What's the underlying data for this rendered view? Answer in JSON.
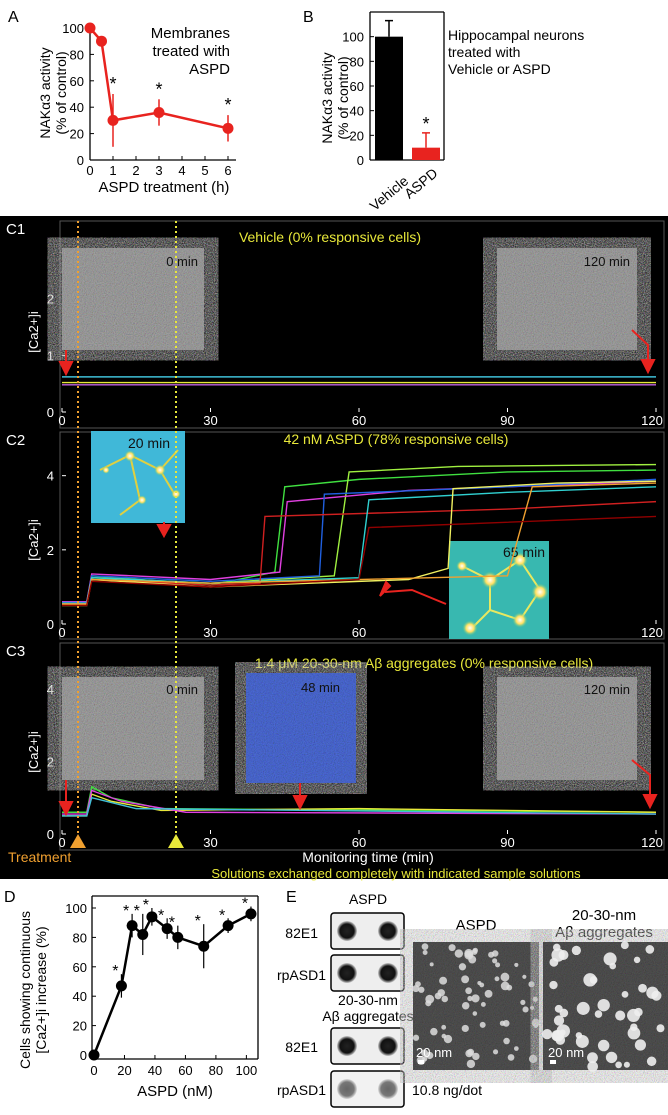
{
  "colors": {
    "red": "#e8231f",
    "yellow": "#e8e83a",
    "orange": "#f0a030",
    "white": "#ffffff",
    "black": "#000000"
  },
  "panel_labels": {
    "a": "A",
    "b": "B",
    "c1": "C1",
    "c2": "C2",
    "c3": "C3",
    "d": "D",
    "e": "E"
  },
  "panel_a": {
    "ylabel_1": "NAKα3 activity",
    "ylabel_2": "(% of control)",
    "xlabel": "ASPD treatment (h)",
    "legend_lines": [
      "Membranes",
      "treated with",
      "ASPD"
    ],
    "yticks": [
      "0",
      "20",
      "40",
      "60",
      "80",
      "100"
    ],
    "xticks": [
      "0",
      "1",
      "2",
      "3",
      "4",
      "5",
      "6"
    ],
    "star": "*"
  },
  "panel_b": {
    "ylabel_1": "NAKα3 activity",
    "ylabel_2": "(% of control)",
    "yticks": [
      "0",
      "20",
      "40",
      "60",
      "80",
      "100"
    ],
    "categories": [
      "Vehicle",
      "ASPD"
    ],
    "legend_lines": [
      "Hippocampal neurons",
      "treated with",
      "Vehicle or ASPD"
    ],
    "star": "*"
  },
  "panel_c": {
    "c1_title": "Vehicle (0% responsive cells)",
    "c2_title": "42 nM ASPD (78% responsive cells)",
    "c3_title": "1.4 μM 20-30-nm Aβ aggregates (0% responsive cells)",
    "ylabel": "[Ca2+]i",
    "yticks_c1": [
      "0",
      "1",
      "2"
    ],
    "yticks_c2": [
      "0",
      "2",
      "4"
    ],
    "yticks_c3": [
      "0",
      "2",
      "4"
    ],
    "xticks": [
      "0",
      "30",
      "60",
      "90",
      "120"
    ],
    "xlabel": "Monitoring time (min)",
    "treatment_label": "Treatment",
    "footnote": "Solutions exchanged completely with indicated sample solutions",
    "inset_c1_start": "0 min",
    "inset_c1_end": "120 min",
    "inset_c2_a": "20 min",
    "inset_c2_b": "65 min",
    "inset_c3_start": "0 min",
    "inset_c3_mid": "48 min",
    "inset_c3_end": "120 min"
  },
  "panel_d": {
    "ylabel_1": "Cells showing continuous",
    "ylabel_2": "[Ca2+]i increase (%)",
    "xlabel": "ASPD (nM)",
    "yticks": [
      "0",
      "20",
      "40",
      "60",
      "80",
      "100"
    ],
    "xticks": [
      "0",
      "20",
      "40",
      "60",
      "80",
      "100"
    ],
    "star": "*"
  },
  "panel_e": {
    "dot_title_1": "ASPD",
    "dot_title_2a": "20-30-nm",
    "dot_title_2b": "Aβ aggregates",
    "antibody_1": "82E1",
    "antibody_2": "rpASD1",
    "dose": "10.8 ng/dot",
    "em_title_1": "ASPD",
    "em_title_2a": "20-30-nm",
    "em_title_2b": "Aβ aggregates",
    "scalebar": "20 nm"
  },
  "chart_data": [
    {
      "panel": "A",
      "type": "line",
      "x": [
        0,
        0.5,
        1,
        3,
        6
      ],
      "values": [
        100,
        90,
        30,
        36,
        24
      ],
      "errors": [
        0,
        0,
        20,
        10,
        10
      ],
      "significant": [
        false,
        false,
        true,
        true,
        true
      ],
      "xlim": [
        0,
        6
      ],
      "ylim": [
        0,
        100
      ]
    },
    {
      "panel": "B",
      "type": "bar",
      "categories": [
        "Vehicle",
        "ASPD"
      ],
      "values": [
        100,
        10
      ],
      "errors": [
        13,
        12
      ],
      "ylim": [
        0,
        120
      ]
    },
    {
      "panel": "C1",
      "type": "line",
      "xlim": [
        0,
        120
      ],
      "ylim": [
        0,
        3
      ],
      "series": [
        {
          "color": "#3fbfd8",
          "points": [
            [
              0,
              0.62
            ],
            [
              120,
              0.62
            ]
          ]
        },
        {
          "color": "#e8e83a",
          "points": [
            [
              0,
              0.52
            ],
            [
              120,
              0.52
            ]
          ]
        },
        {
          "color": "#c060e0",
          "points": [
            [
              0,
              0.48
            ],
            [
              120,
              0.48
            ]
          ]
        }
      ]
    },
    {
      "panel": "C2",
      "type": "line",
      "xlim": [
        0,
        120
      ],
      "ylim": [
        0,
        4.8
      ],
      "series": [
        {
          "color": "#40e040",
          "points": [
            [
              0,
              0.55
            ],
            [
              5,
              0.55
            ],
            [
              6,
              1.3
            ],
            [
              30,
              1.05
            ],
            [
              43,
              1.4
            ],
            [
              45,
              3.7
            ],
            [
              60,
              3.9
            ],
            [
              90,
              4.1
            ],
            [
              120,
              4.15
            ]
          ]
        },
        {
          "color": "#a0f040",
          "points": [
            [
              0,
              0.5
            ],
            [
              5,
              0.5
            ],
            [
              6,
              1.25
            ],
            [
              30,
              1.1
            ],
            [
              55,
              1.3
            ],
            [
              58,
              4.1
            ],
            [
              80,
              4.25
            ],
            [
              120,
              4.3
            ]
          ]
        },
        {
          "color": "#e040e0",
          "points": [
            [
              0,
              0.6
            ],
            [
              5,
              0.6
            ],
            [
              6,
              1.35
            ],
            [
              30,
              1.2
            ],
            [
              44,
              1.4
            ],
            [
              45.5,
              3.3
            ],
            [
              70,
              3.6
            ],
            [
              120,
              3.85
            ]
          ]
        },
        {
          "color": "#2060e0",
          "points": [
            [
              0,
              0.58
            ],
            [
              5,
              0.58
            ],
            [
              6,
              1.3
            ],
            [
              30,
              1.15
            ],
            [
              52,
              1.3
            ],
            [
              53,
              3.5
            ],
            [
              90,
              3.7
            ],
            [
              120,
              3.9
            ]
          ]
        },
        {
          "color": "#d02020",
          "points": [
            [
              0,
              0.52
            ],
            [
              5,
              0.52
            ],
            [
              6,
              1.2
            ],
            [
              30,
              1.05
            ],
            [
              40,
              1.1
            ],
            [
              41,
              2.9
            ],
            [
              90,
              3.1
            ],
            [
              120,
              3.3
            ]
          ]
        },
        {
          "color": "#30d0d0",
          "points": [
            [
              0,
              0.56
            ],
            [
              5,
              0.56
            ],
            [
              6,
              1.25
            ],
            [
              30,
              1.1
            ],
            [
              60,
              1.25
            ],
            [
              62,
              3.35
            ],
            [
              90,
              3.55
            ],
            [
              120,
              3.7
            ]
          ]
        },
        {
          "color": "#f0f060",
          "points": [
            [
              0,
              0.5
            ],
            [
              5,
              0.5
            ],
            [
              6,
              1.2
            ],
            [
              30,
              1.0
            ],
            [
              70,
              1.2
            ],
            [
              78,
              1.5
            ],
            [
              79,
              3.65
            ],
            [
              100,
              3.8
            ],
            [
              120,
              3.85
            ]
          ]
        },
        {
          "color": "#f0a030",
          "points": [
            [
              0,
              0.54
            ],
            [
              5,
              0.54
            ],
            [
              6,
              1.2
            ],
            [
              30,
              1.1
            ],
            [
              90,
              1.3
            ],
            [
              95,
              3.7
            ],
            [
              120,
              3.8
            ]
          ]
        },
        {
          "color": "#900000",
          "points": [
            [
              0,
              0.5
            ],
            [
              5,
              0.5
            ],
            [
              6,
              1.15
            ],
            [
              30,
              1.0
            ],
            [
              60,
              1.2
            ],
            [
              62,
              2.6
            ],
            [
              120,
              2.9
            ]
          ]
        }
      ]
    },
    {
      "panel": "C3",
      "type": "line",
      "xlim": [
        0,
        120
      ],
      "ylim": [
        0,
        4.8
      ],
      "series": [
        {
          "color": "#40e040",
          "points": [
            [
              0,
              0.6
            ],
            [
              5,
              0.6
            ],
            [
              6,
              1.3
            ],
            [
              10,
              1.0
            ],
            [
              20,
              0.7
            ],
            [
              120,
              0.6
            ]
          ]
        },
        {
          "color": "#e8e83a",
          "points": [
            [
              0,
              0.5
            ],
            [
              5,
              0.5
            ],
            [
              6,
              1.1
            ],
            [
              10,
              0.9
            ],
            [
              20,
              0.65
            ],
            [
              60,
              0.7
            ],
            [
              120,
              0.6
            ]
          ]
        },
        {
          "color": "#e040e0",
          "points": [
            [
              0,
              0.55
            ],
            [
              5,
              0.55
            ],
            [
              6,
              1.2
            ],
            [
              12,
              0.9
            ],
            [
              25,
              0.6
            ],
            [
              120,
              0.55
            ]
          ]
        },
        {
          "color": "#3fbfd8",
          "points": [
            [
              0,
              0.5
            ],
            [
              5,
              0.5
            ],
            [
              6,
              1.0
            ],
            [
              15,
              0.7
            ],
            [
              120,
              0.55
            ]
          ]
        }
      ]
    },
    {
      "panel": "D",
      "type": "line",
      "x": [
        0,
        18,
        25,
        32,
        38,
        48,
        55,
        72,
        88,
        103
      ],
      "values": [
        0,
        47,
        88,
        82,
        94,
        86,
        80,
        74,
        88,
        96
      ],
      "errors": [
        0,
        8,
        8,
        14,
        6,
        7,
        8,
        15,
        5,
        5
      ],
      "significant": [
        false,
        true,
        true,
        true,
        true,
        true,
        true,
        true,
        true,
        true
      ],
      "xlim": [
        0,
        105
      ],
      "ylim": [
        0,
        100
      ]
    }
  ]
}
